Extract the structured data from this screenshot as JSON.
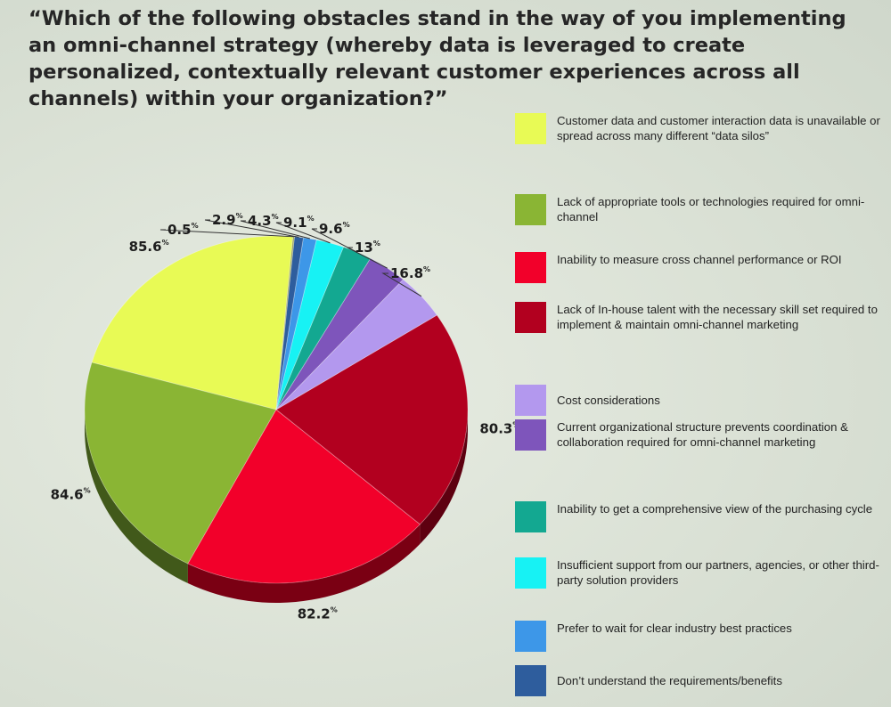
{
  "title": "“Which of the following obstacles stand in the way of you implementing an omni-channel strategy (whereby data is leveraged to create personalized, contextually relevant customer experiences across all channels) within your organization?”",
  "chart_data": {
    "type": "pie",
    "percent_symbol": "%",
    "slices": [
      {
        "label": "Customer data and customer interaction data is unavailable or spread across many different “data silos”",
        "value": 85.6,
        "display": "85.6",
        "color": "#e8fa55",
        "side_color": "#75861f"
      },
      {
        "label": "Lack of appropriate tools or technologies required for omni-channel",
        "value": 84.6,
        "display": "84.6",
        "color": "#8ab534",
        "side_color": "#41591a"
      },
      {
        "label": "Inability to measure cross channel performance or ROI",
        "value": 82.2,
        "display": "82.2",
        "color": "#f2002a",
        "side_color": "#7a0013"
      },
      {
        "label": "Lack of In-house talent with the necessary skill set required to implement & maintain omni-channel marketing",
        "value": 80.3,
        "display": "80.3",
        "color": "#b2001f",
        "side_color": "#5e0010"
      },
      {
        "label": "Cost considerations",
        "value": 16.8,
        "display": "16.8",
        "color": "#b398ee",
        "side_color": "#5c4a86"
      },
      {
        "label": "Current organizational structure prevents coordination & collaboration required for omni-channel marketing",
        "value": 13,
        "display": "13",
        "color": "#7e55bb",
        "side_color": "#3f2a62"
      },
      {
        "label": "Inability to get a comprehensive view of the purchasing cycle",
        "value": 9.6,
        "display": "9.6",
        "color": "#13a891",
        "side_color": "#0a574a"
      },
      {
        "label": "Insufficient support from our partners, agencies, or other third-party solution providers",
        "value": 9.1,
        "display": "9.1",
        "color": "#17f2f4",
        "side_color": "#0c7f80"
      },
      {
        "label": "Prefer to wait for clear industry best practices",
        "value": 4.3,
        "display": "4.3",
        "color": "#3d97e8",
        "side_color": "#1f4f79"
      },
      {
        "label": "Don’t understand the requirements/benefits",
        "value": 2.9,
        "display": "2.9",
        "color": "#2e5d9d",
        "side_color": "#173052"
      },
      {
        "label": "",
        "value": 0.5,
        "display": "0.5",
        "color": "#9aa35c",
        "side_color": "#4d522d"
      }
    ]
  }
}
